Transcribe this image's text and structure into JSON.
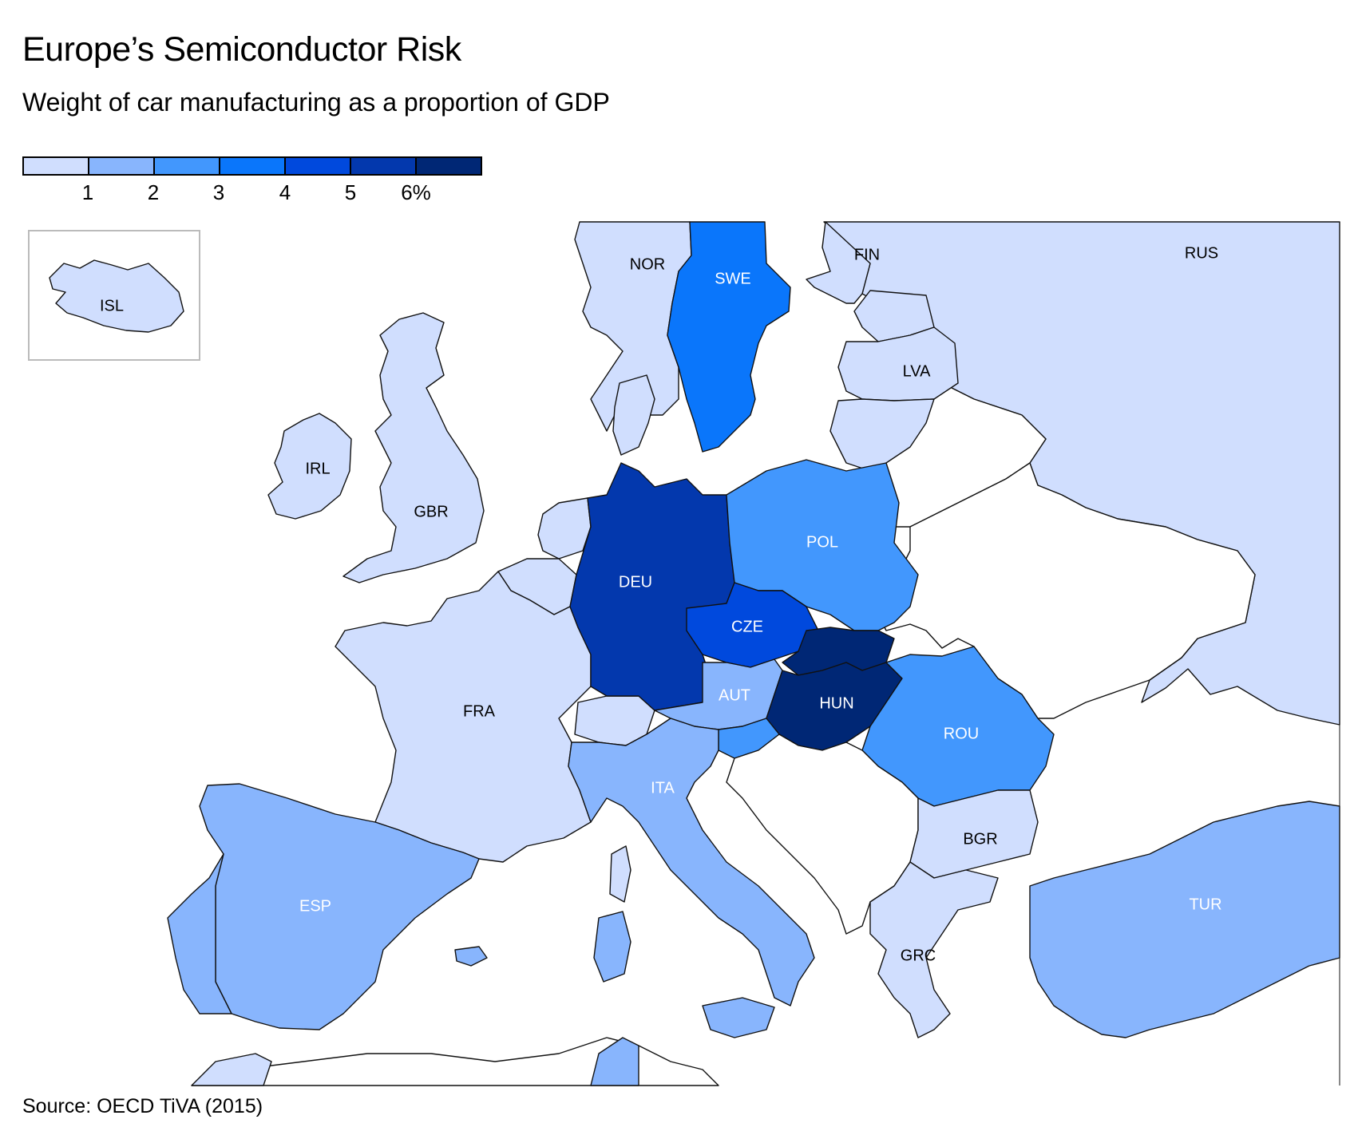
{
  "title": "Europe’s Semiconductor Risk",
  "subtitle": "Weight of car manufacturing as a proportion of GDP",
  "source": "Source: OECD TiVA (2015)",
  "legend": {
    "colors": [
      "#d0defe",
      "#88b5fd",
      "#4297fd",
      "#0a76fb",
      "#0049dd",
      "#0338ad",
      "#002775"
    ],
    "ticks": [
      "1",
      "2",
      "3",
      "4",
      "5",
      "6%"
    ]
  },
  "countries": {
    "ISL": "ISL",
    "NOR": "NOR",
    "SWE": "SWE",
    "FIN": "FIN",
    "RUS": "RUS",
    "LVA": "LVA",
    "IRL": "IRL",
    "GBR": "GBR",
    "POL": "POL",
    "DEU": "DEU",
    "CZE": "CZE",
    "AUT": "AUT",
    "HUN": "HUN",
    "ROU": "ROU",
    "FRA": "FRA",
    "ITA": "ITA",
    "BGR": "BGR",
    "ESP": "ESP",
    "TUR": "TUR",
    "GRC": "GRC"
  }
}
